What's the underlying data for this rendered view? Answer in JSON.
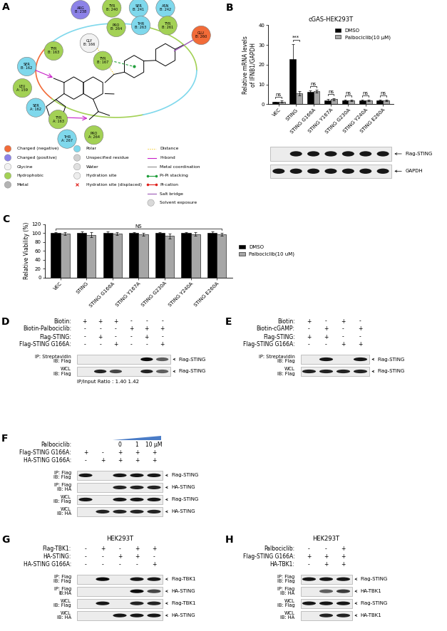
{
  "docking": {
    "panel": "A",
    "residues": [
      {
        "name": "ARG",
        "chain": "B: 238",
        "kind": "Charged (positive)"
      },
      {
        "name": "TYR",
        "chain": "B: 240",
        "kind": "Hydrophobic"
      },
      {
        "name": "SER",
        "chain": "B: 241",
        "kind": "Polar"
      },
      {
        "name": "ASN",
        "chain": "B: 242",
        "kind": "Polar"
      },
      {
        "name": "PRO",
        "chain": "B: 264",
        "kind": "Hydrophobic"
      },
      {
        "name": "THR",
        "chain": "B: 263",
        "kind": "Polar"
      },
      {
        "name": "TYR",
        "chain": "B: 261",
        "kind": "Hydrophobic"
      },
      {
        "name": "GLU",
        "chain": "B: 260",
        "kind": "Charged (negative)"
      },
      {
        "name": "GLY",
        "chain": "B: 166",
        "kind": "Glycine"
      },
      {
        "name": "TYR",
        "chain": "B: 167",
        "kind": "Hydrophobic"
      },
      {
        "name": "TYR",
        "chain": "B: 163",
        "kind": "Hydrophobic"
      },
      {
        "name": "SER",
        "chain": "B: 162",
        "kind": "Polar"
      },
      {
        "name": "LEU",
        "chain": "A: 159",
        "kind": "Hydrophobic"
      },
      {
        "name": "SER",
        "chain": "A: 162",
        "kind": "Polar"
      },
      {
        "name": "TYR",
        "chain": "A: 163",
        "kind": "Hydrophobic"
      },
      {
        "name": "THR",
        "chain": "A: 267",
        "kind": "Polar"
      },
      {
        "name": "PRO",
        "chain": "A: 264",
        "kind": "Hydrophobic"
      }
    ],
    "legend": [
      {
        "label": "Charged (negative)",
        "color": "#f26b38",
        "marker": "circle"
      },
      {
        "label": "Charged (positive)",
        "color": "#8c82e8",
        "marker": "circle"
      },
      {
        "label": "Glycine",
        "color": "#f2f2f2",
        "marker": "circle"
      },
      {
        "label": "Hydrophobic",
        "color": "#a3d155",
        "marker": "circle"
      },
      {
        "label": "Metal",
        "color": "#b3b3b3",
        "marker": "circle"
      },
      {
        "label": "Polar",
        "color": "#7fd8ec",
        "marker": "circle"
      },
      {
        "label": "Unspecified residue",
        "color": "#d0d0d0",
        "marker": "circle"
      },
      {
        "label": "Water",
        "color": "#e0e0e0",
        "marker": "circle"
      },
      {
        "label": "Hydration site",
        "color": "#ededed",
        "marker": "circle"
      },
      {
        "label": "Hydration site (displaced)",
        "color": "#e0201b",
        "marker": "x"
      },
      {
        "label": "Distance",
        "color": "#f2c200",
        "marker": "line",
        "line_style": "dotted"
      },
      {
        "label": "H-bond",
        "color": "#c81fc8",
        "marker": "line",
        "line_style": "solid"
      },
      {
        "label": "Metal coordination",
        "color": "#8c8c8c",
        "marker": "line",
        "line_style": "solid"
      },
      {
        "label": "Pi-Pi stacking",
        "color": "#1f9e3a",
        "marker": "line",
        "line_style": "dotline"
      },
      {
        "label": "Pi-cation",
        "color": "#e0201b",
        "marker": "line",
        "line_style": "dotline"
      },
      {
        "label": "Salt bridge",
        "color": "#9b59b6",
        "marker": "line",
        "line_style": "solid"
      },
      {
        "label": "Solvent exposure",
        "color": "#d9d9d9",
        "marker": "circle"
      }
    ]
  },
  "chart_data": [
    {
      "panel": "B",
      "type": "bar",
      "title": "cGAS-HEK293T",
      "y_label": "Relative mRNA levels\nof IFNB1/GAPDH",
      "categories": [
        "VEC",
        "STING",
        "STING G166A",
        "STING Y167A",
        "STING G230A",
        "STING Y240A",
        "STING E260A"
      ],
      "series": [
        {
          "name": "DMSO",
          "color": "#000000",
          "values": [
            1.0,
            23.0,
            6.3,
            2.0,
            2.0,
            2.0,
            2.0
          ],
          "errors": [
            0.3,
            7.5,
            0.8,
            0.5,
            0.4,
            0.4,
            0.4
          ]
        },
        {
          "name": "Palbociclib(10 μM)",
          "color": "#a6a6a6",
          "values": [
            1.3,
            5.5,
            6.5,
            2.5,
            2.0,
            2.0,
            2.0
          ],
          "errors": [
            0.5,
            1.0,
            0.7,
            0.6,
            0.4,
            0.4,
            0.4
          ]
        }
      ],
      "ylim": [
        0,
        40
      ],
      "yticks": [
        0,
        10,
        20,
        30,
        40
      ],
      "legend": "upper right",
      "significance": [
        "ns",
        "***",
        "ns",
        "ns",
        "ns",
        "ns",
        "ns"
      ],
      "blots": [
        {
          "band": "Flag-STING",
          "bands": [
            0,
            0.9,
            0.9,
            0.9,
            0.9,
            0.9,
            0.9
          ]
        },
        {
          "band": "GAPDH",
          "bands": [
            0.9,
            0.9,
            0.9,
            0.9,
            0.9,
            0.9,
            0.9
          ]
        }
      ]
    },
    {
      "panel": "C",
      "type": "bar",
      "y_label": "Relative Viability (%)",
      "categories": [
        "VEC",
        "STING",
        "STING G166A",
        "STING Y167A",
        "STING G230A",
        "STING Y240A",
        "STING E260A"
      ],
      "series": [
        {
          "name": "DMSO",
          "color": "#000000",
          "values": [
            100,
            100,
            100,
            100,
            100,
            100,
            100
          ],
          "errors": [
            2,
            3,
            3,
            2,
            2,
            2,
            3
          ]
        },
        {
          "name": "Palbociclib(10 uM)",
          "color": "#a6a6a6",
          "values": [
            99,
            96,
            98,
            97,
            93,
            97,
            97
          ],
          "errors": [
            3,
            5,
            3,
            3,
            6,
            4,
            3
          ]
        }
      ],
      "ylim": [
        0,
        120
      ],
      "yticks": [
        0,
        20,
        40,
        60,
        80,
        100,
        120
      ],
      "legend": "center left",
      "significance": "NS"
    }
  ],
  "blot_panels": [
    {
      "panel": "D",
      "conditions": [
        {
          "label": "Biotin:",
          "signs": [
            "+",
            "+",
            "+",
            "-",
            "-",
            "-"
          ]
        },
        {
          "label": "Biotin-Palbociclib:",
          "signs": [
            "-",
            "-",
            "-",
            "+",
            "+",
            "+"
          ]
        },
        {
          "label": "Flag-STING:",
          "signs": [
            "-",
            "+",
            "-",
            "-",
            "+",
            "-"
          ]
        },
        {
          "label": "Flag-STING G166A:",
          "signs": [
            "-",
            "-",
            "+",
            "-",
            "-",
            "+"
          ]
        }
      ],
      "blots": [
        {
          "label": "IP: Streptavidin\nIB: Flag",
          "band": "Flag-STING",
          "bands": [
            0,
            0,
            0,
            0,
            0.95,
            0.6
          ]
        },
        {
          "label": "WCL\nIB: Flag",
          "band": "Flag-STING",
          "bands": [
            0,
            0.85,
            0.7,
            0,
            0.85,
            0.6
          ]
        }
      ],
      "footer": "IP/Input Ratio : 1.40 1.42"
    },
    {
      "panel": "E",
      "conditions": [
        {
          "label": "Biotin:",
          "signs": [
            "+",
            "-",
            "+",
            "-"
          ]
        },
        {
          "label": "Biotin-cGAMP:",
          "signs": [
            "-",
            "+",
            "-",
            "+"
          ]
        },
        {
          "label": "Flag-STING:",
          "signs": [
            "+",
            "+",
            "-",
            "-"
          ]
        },
        {
          "label": "Flag-STING G166A:",
          "signs": [
            "-",
            "-",
            "+",
            "+"
          ]
        }
      ],
      "blots": [
        {
          "label": "IP: Streptavidin\nIB: Flag",
          "band": "Flag-STING",
          "bands": [
            0,
            0.9,
            0,
            0.9
          ]
        },
        {
          "label": "WCL\nIB: Flag",
          "band": "Flag-STING",
          "bands": [
            0.85,
            0.85,
            0.85,
            0.85
          ]
        }
      ]
    },
    {
      "panel": "F",
      "conditions": [
        {
          "label": "Palbociclib:",
          "signs": [
            null,
            null,
            "0",
            "1",
            "10 μM"
          ]
        },
        {
          "label": "Flag-STING G166A:",
          "signs": [
            "+",
            "-",
            "+",
            "+",
            "+"
          ]
        },
        {
          "label": "HA-STING G166A:",
          "signs": [
            "-",
            "+",
            "+",
            "+",
            "+"
          ]
        }
      ],
      "blots": [
        {
          "label": "IP: Flag\nIB: Flag",
          "band": "Flag-STING",
          "bands": [
            0.9,
            0,
            0.9,
            0.9,
            0.9
          ]
        },
        {
          "label": "IP: Flag\nIB: HA",
          "band": "HA-STING",
          "bands": [
            0,
            0,
            0.85,
            0.85,
            0.85
          ]
        },
        {
          "label": "WCL\nIB: Flag",
          "band": "Flag-STING",
          "bands": [
            0.9,
            0,
            0.9,
            0.9,
            0.9
          ]
        },
        {
          "label": "WCL\nIB: HA",
          "band": "HA-STING",
          "bands": [
            0,
            0.85,
            0.85,
            0.85,
            0.85
          ]
        }
      ]
    },
    {
      "panel": "G",
      "cell_line": "HEK293T",
      "conditions": [
        {
          "label": "Flag-TBK1:",
          "signs": [
            "-",
            "+",
            "-",
            "+",
            "+"
          ]
        },
        {
          "label": "HA-STING:",
          "signs": [
            "-",
            "-",
            "+",
            "+",
            "-"
          ]
        },
        {
          "label": "HA-STING G166A:",
          "signs": [
            "-",
            "-",
            "-",
            "-",
            "+"
          ]
        }
      ],
      "blots": [
        {
          "label": "IP: Flag\nIB: Flag",
          "band": "Flag-TBK1",
          "bands": [
            0,
            0.95,
            0,
            0.9,
            0.9
          ]
        },
        {
          "label": "IP: Flag\nIB:HA",
          "band": "HA-STING",
          "bands": [
            0,
            0,
            0,
            0.95,
            0.7
          ]
        },
        {
          "label": "WCL\nIB: Flag",
          "band": "Flag-TBK1",
          "bands": [
            0,
            0.9,
            0,
            0.85,
            0.85
          ]
        },
        {
          "label": "WCL\nIB: HA",
          "band": "HA-STING",
          "bands": [
            0,
            0,
            0.9,
            0.9,
            0.9
          ]
        }
      ]
    },
    {
      "panel": "H",
      "cell_line": "HEK293T",
      "conditions": [
        {
          "label": "Palbociclib:",
          "signs": [
            "-",
            "-",
            "+"
          ]
        },
        {
          "label": "Flag-STING G166A:",
          "signs": [
            "+",
            "+",
            "+"
          ]
        },
        {
          "label": "HA-TBK1:",
          "signs": [
            "-",
            "+",
            "+"
          ]
        }
      ],
      "blots": [
        {
          "label": "IP: Flag\nIB: Flag",
          "band": "Flag-STING",
          "bands": [
            0.9,
            0.9,
            0.9
          ]
        },
        {
          "label": "IP: Flag\nIB: HA",
          "band": "HA-TBK1",
          "bands": [
            0,
            0.6,
            0.75
          ]
        },
        {
          "label": "WCL\nIB: Flag",
          "band": "Flag-STING",
          "bands": [
            0.9,
            0.9,
            0.9
          ]
        },
        {
          "label": "WCL\nIB: HA",
          "band": "HA-TBK1",
          "bands": [
            0,
            0.85,
            0.85
          ]
        }
      ]
    }
  ]
}
